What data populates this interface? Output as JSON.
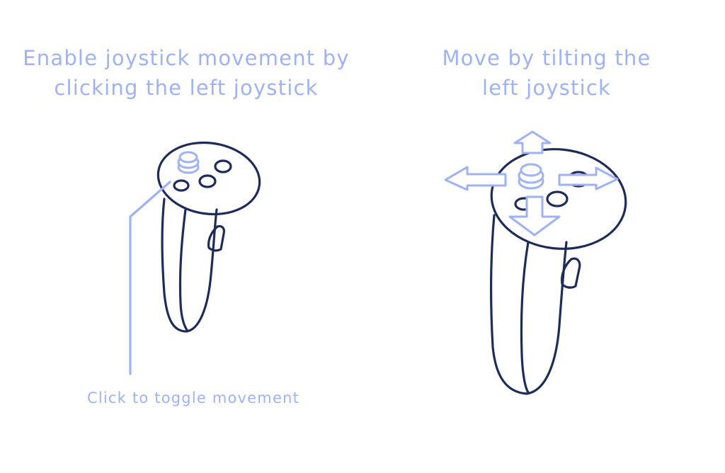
{
  "colors": {
    "accent": "#9fb2f2",
    "outline": "#1f2c57",
    "background": "#ffffff"
  },
  "left_panel": {
    "heading_line1": "Enable joystick movement by",
    "heading_line2": "clicking the left joystick",
    "caption": "Click to toggle movement",
    "icon": "vr-controller-left"
  },
  "right_panel": {
    "heading_line1": "Move by tilting the",
    "heading_line2": "left joystick",
    "icon": "vr-controller-left",
    "arrows": [
      "up",
      "down",
      "left",
      "right"
    ]
  }
}
